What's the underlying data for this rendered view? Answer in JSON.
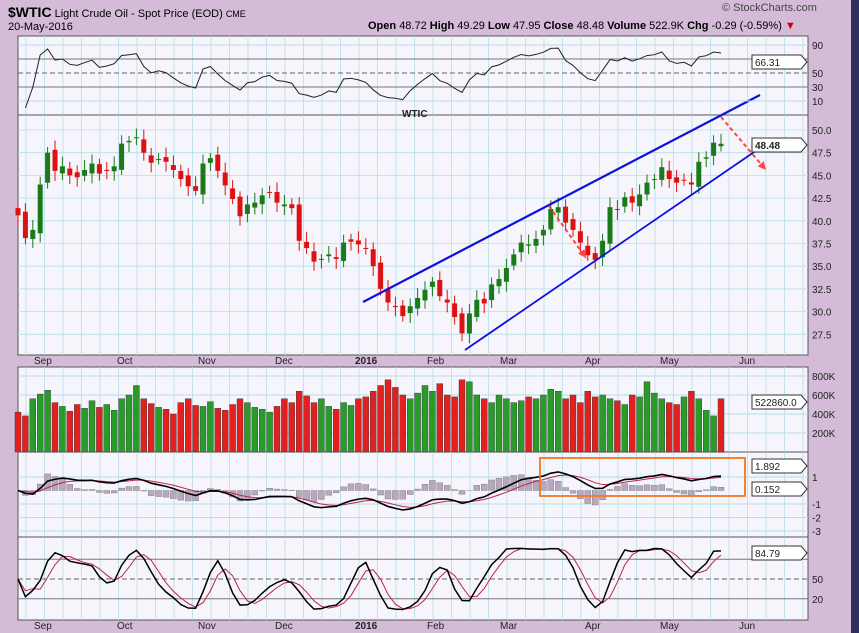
{
  "header": {
    "symbol": "$WTIC",
    "name": "Light Crude Oil - Spot Price (EOD)",
    "exchange": "CME",
    "date": "20-May-2016",
    "watermark": "© StockCharts.com",
    "open_label": "Open",
    "open": "48.72",
    "high_label": "High",
    "high": "49.29",
    "low_label": "Low",
    "low": "47.95",
    "close_label": "Close",
    "close": "48.48",
    "volume_label": "Volume",
    "volume": "522.9K",
    "chg_label": "Chg",
    "chg": "-0.29 (-0.59%)",
    "chg_arrow": "▼"
  },
  "annotation_text": "WTIC",
  "colors": {
    "up": "#1a7a1a",
    "down": "#dd1111",
    "channel": "#1010dd",
    "arrow": "#ff4444",
    "box": "#f07820",
    "annotation": "#9b4fe0",
    "grid": "#b8dde8"
  },
  "chart_data": [
    {
      "type": "line",
      "panel": "rsi",
      "ticks": [
        "90",
        "50",
        "30",
        "10"
      ],
      "tick_values": [
        90,
        50,
        30,
        10
      ],
      "last_label": "66.31",
      "ylim": [
        0,
        100
      ]
    },
    {
      "type": "candlestick",
      "panel": "price",
      "ticks": [
        "50.0",
        "47.5",
        "45.0",
        "42.5",
        "40.0",
        "37.5",
        "35.0",
        "32.5",
        "30.0",
        "27.5"
      ],
      "ylim": [
        26,
        51.5
      ],
      "last_label": "48.48",
      "x_labels": [
        "Sep",
        "Oct",
        "Nov",
        "Dec",
        "2016",
        "Feb",
        "Mar",
        "Apr",
        "May",
        "Jun"
      ],
      "closes": [
        40.6,
        38.1,
        39,
        44,
        47.5,
        45.5,
        46,
        45,
        44.8,
        45.6,
        46.3,
        45.2,
        45.5,
        46,
        48.5,
        48.8,
        49.2,
        47.5,
        46.4,
        46.8,
        46.5,
        45.6,
        44.6,
        43.8,
        43.3,
        46.3,
        46.9,
        45.5,
        43.9,
        42.4,
        40.5,
        41.8,
        42,
        42.8,
        43.1,
        42,
        41.8,
        41.4,
        37.8,
        37,
        35.5,
        35.8,
        36.3,
        35.8,
        37.6,
        37.7,
        37.4,
        36.9,
        35,
        32.5,
        31,
        30.5,
        29.5,
        30.6,
        31.5,
        32.4,
        33.3,
        31.7,
        31,
        29.4,
        27.6,
        29.8,
        31.3,
        30.9,
        33,
        33.6,
        34.8,
        36.3,
        37.6,
        37.4,
        38,
        39,
        41.3,
        41.5,
        39.8,
        39,
        37.6,
        36.2,
        35.7,
        37.8,
        41.5,
        41.2,
        42.6,
        42,
        42.9,
        44.2,
        44.6,
        45.9,
        44.6,
        44.2,
        44.5,
        44,
        46.5,
        47,
        48.6,
        48.48
      ]
    },
    {
      "type": "bar",
      "panel": "volume",
      "ticks": [
        "800K",
        "600K",
        "400K",
        "200K"
      ],
      "tick_values": [
        800000,
        600000,
        400000,
        200000
      ],
      "last_label": "522860.0",
      "values": [
        420,
        380,
        560,
        610,
        650,
        520,
        480,
        430,
        500,
        460,
        540,
        470,
        500,
        440,
        560,
        600,
        700,
        560,
        510,
        470,
        450,
        400,
        520,
        560,
        490,
        480,
        530,
        460,
        440,
        500,
        560,
        520,
        470,
        450,
        420,
        480,
        560,
        520,
        640,
        590,
        520,
        560,
        480,
        450,
        520,
        490,
        560,
        580,
        640,
        700,
        760,
        680,
        600,
        560,
        620,
        700,
        640,
        720,
        600,
        580,
        760,
        740,
        600,
        560,
        520,
        600,
        560,
        520,
        540,
        580,
        560,
        600,
        660,
        640,
        560,
        600,
        520,
        640,
        580,
        600,
        560,
        540,
        500,
        600,
        580,
        740,
        620,
        560,
        520,
        500,
        580,
        640,
        560,
        440,
        380,
        560
      ]
    },
    {
      "type": "line",
      "panel": "macd",
      "ticks": [
        "1",
        "-1",
        "-2",
        "-3"
      ],
      "tick_values": [
        1,
        -1,
        -2,
        -3
      ],
      "labels": [
        "1.892",
        "0.152"
      ]
    },
    {
      "type": "line",
      "panel": "stochastic",
      "ticks": [
        "50",
        "20"
      ],
      "tick_values": [
        50,
        20
      ],
      "last_label": "84.79"
    }
  ]
}
